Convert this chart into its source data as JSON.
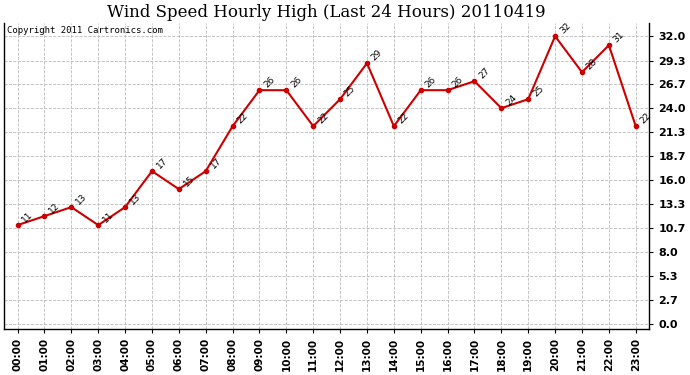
{
  "title": "Wind Speed Hourly High (Last 24 Hours) 20110419",
  "copyright_text": "Copyright 2011 Cartronics.com",
  "hours": [
    "00:00",
    "01:00",
    "02:00",
    "03:00",
    "04:00",
    "05:00",
    "06:00",
    "07:00",
    "08:00",
    "09:00",
    "10:00",
    "11:00",
    "12:00",
    "13:00",
    "14:00",
    "15:00",
    "16:00",
    "17:00",
    "18:00",
    "19:00",
    "20:00",
    "21:00",
    "22:00",
    "23:00"
  ],
  "values": [
    11,
    12,
    13,
    11,
    13,
    17,
    15,
    17,
    22,
    26,
    26,
    22,
    25,
    29,
    22,
    26,
    26,
    27,
    24,
    25,
    32,
    28,
    31,
    22
  ],
  "line_color": "#cc0000",
  "marker_color": "#cc0000",
  "bg_color": "#ffffff",
  "grid_color": "#bbbbbb",
  "title_fontsize": 12,
  "ylim_min": -0.5,
  "ylim_max": 33.5,
  "yticks": [
    0.0,
    2.7,
    5.3,
    8.0,
    10.7,
    13.3,
    16.0,
    18.7,
    21.3,
    24.0,
    26.7,
    29.3,
    32.0
  ]
}
